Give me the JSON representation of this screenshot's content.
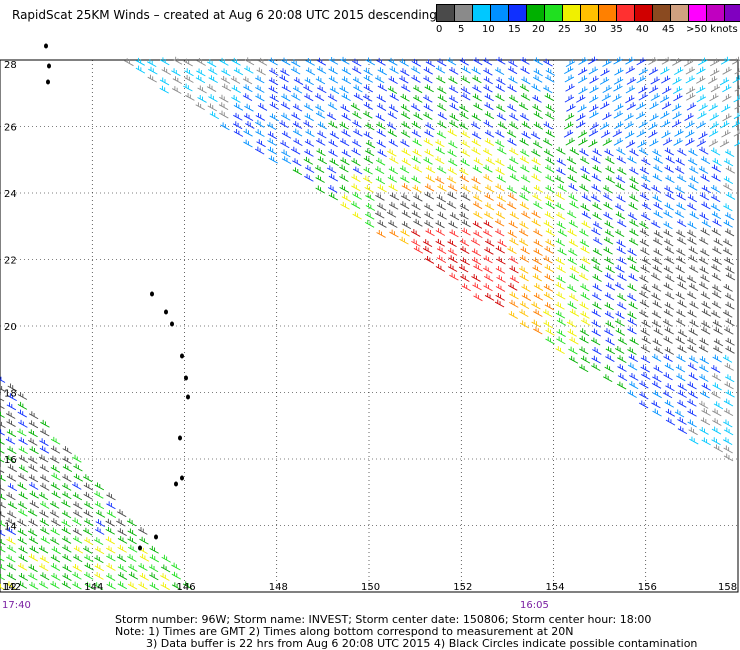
{
  "header": {
    "title": "RapidScat 25KM Winds – created at Aug  6 20:08 UTC 2015 descending"
  },
  "colorbar": {
    "colors": [
      "#4a4a4a",
      "#8a8a8a",
      "#00c8ff",
      "#0090ff",
      "#1030ff",
      "#00b000",
      "#20e020",
      "#f0f000",
      "#ffc000",
      "#ff8000",
      "#ff3030",
      "#d00000",
      "#8a4a20",
      "#d0a080",
      "#ff00ff",
      "#c000c0",
      "#8000c0",
      "#4000a0"
    ],
    "labels": [
      "0",
      "5",
      "10",
      "15",
      "20",
      "25",
      "30",
      "35",
      "40",
      "45",
      ">50 knots"
    ]
  },
  "map": {
    "lon_labels": [
      "142",
      "144",
      "146",
      "148",
      "150",
      "152",
      "154",
      "156",
      "158"
    ],
    "lat_labels": [
      "12",
      "14",
      "16",
      "18",
      "20",
      "22",
      "24",
      "26",
      "28"
    ],
    "lon_range": [
      142,
      158
    ],
    "lat_range": [
      12,
      28
    ],
    "grid": "dotted"
  },
  "times": {
    "left": "17:40",
    "right": "16:05"
  },
  "footer": {
    "line1": "Storm number: 96W;  Storm name: INVEST;  Storm center date: 150806;  Storm center hour: 18:00",
    "line2": "Note: 1) Times are GMT  2) Times along bottom correspond to measurement at 20N",
    "line3": "3) Data buffer is 22 hrs from Aug  6 20:08 UTC 2015   4) Black Circles indicate possible contamination"
  }
}
